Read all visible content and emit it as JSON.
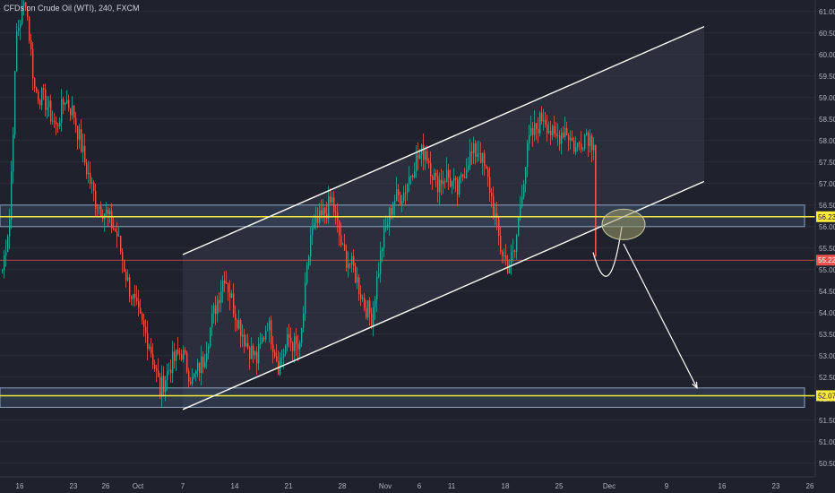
{
  "symbol": "CFDs on Crude Oil (WTI), 240, FXCM",
  "colors": {
    "background": "#1f222d",
    "up": "#26a69a",
    "down": "#ef5350",
    "trendline": "#ffffff",
    "zone_fill": "#3b4f6a",
    "zone_border": "#8fa3bf",
    "level_yellow": "#ffeb3b",
    "level_red": "#ef5350",
    "ellipse_fill": "#9c9c6a",
    "channel_fill": "#363a47"
  },
  "chart_data": {
    "type": "candlestick",
    "ylim": [
      49.8,
      61.1
    ],
    "y_ticks": [
      "61.00",
      "60.50",
      "60.00",
      "59.50",
      "59.00",
      "58.50",
      "58.00",
      "57.50",
      "57.00",
      "56.50",
      "56.00",
      "55.50",
      "55.00",
      "54.50",
      "54.00",
      "53.50",
      "53.00",
      "52.50",
      "52.00",
      "51.50",
      "51.00",
      "50.50",
      "50.00"
    ],
    "x_ticks": [
      "16",
      "23",
      "26",
      "Oct",
      "7",
      "14",
      "21",
      "28",
      "Nov",
      "6",
      "11",
      "18",
      "25",
      "Dec",
      "9",
      "16",
      "23",
      "26"
    ],
    "price_labels": [
      {
        "text": "56.23",
        "value": 56.23,
        "color": "yellow"
      },
      {
        "text": "55.22",
        "value": 55.22,
        "color": "red"
      },
      {
        "text": "52.07",
        "value": 52.07,
        "color": "yellow"
      }
    ],
    "zones": [
      {
        "low": 56.0,
        "high": 56.5
      },
      {
        "low": 51.8,
        "high": 52.25
      }
    ],
    "levels": [
      {
        "value": 56.23,
        "color": "yellow"
      },
      {
        "value": 52.07,
        "color": "yellow"
      },
      {
        "value": 55.22,
        "color": "red"
      }
    ],
    "channel": {
      "upper": [
        {
          "bar": 101,
          "price": 55.35
        },
        {
          "bar": 392,
          "price": 60.65
        }
      ],
      "lower": [
        {
          "bar": 101,
          "price": 51.75
        },
        {
          "bar": 392,
          "price": 57.05
        }
      ]
    },
    "anchors": [
      [
        0,
        55.0
      ],
      [
        4,
        56.2
      ],
      [
        8,
        60.5
      ],
      [
        13,
        61.3
      ],
      [
        18,
        59.2
      ],
      [
        24,
        58.9
      ],
      [
        30,
        58.3
      ],
      [
        35,
        59.0
      ],
      [
        40,
        58.6
      ],
      [
        46,
        57.5
      ],
      [
        52,
        56.6
      ],
      [
        58,
        56.3
      ],
      [
        64,
        55.8
      ],
      [
        70,
        54.7
      ],
      [
        76,
        53.9
      ],
      [
        82,
        53.3
      ],
      [
        88,
        52.2
      ],
      [
        94,
        52.8
      ],
      [
        100,
        53.1
      ],
      [
        106,
        52.4
      ],
      [
        112,
        52.9
      ],
      [
        118,
        54.0
      ],
      [
        124,
        54.9
      ],
      [
        130,
        54.0
      ],
      [
        136,
        53.3
      ],
      [
        142,
        52.9
      ],
      [
        148,
        53.8
      ],
      [
        154,
        52.8
      ],
      [
        160,
        53.4
      ],
      [
        166,
        53.1
      ],
      [
        172,
        55.8
      ],
      [
        178,
        56.2
      ],
      [
        184,
        56.6
      ],
      [
        190,
        55.4
      ],
      [
        196,
        55.0
      ],
      [
        202,
        54.2
      ],
      [
        206,
        53.9
      ],
      [
        212,
        55.6
      ],
      [
        218,
        56.6
      ],
      [
        224,
        56.8
      ],
      [
        230,
        57.5
      ],
      [
        236,
        57.8
      ],
      [
        242,
        57.0
      ],
      [
        248,
        57.2
      ],
      [
        254,
        56.8
      ],
      [
        260,
        57.6
      ],
      [
        266,
        57.8
      ],
      [
        272,
        56.9
      ],
      [
        278,
        55.5
      ],
      [
        282,
        55.1
      ],
      [
        286,
        55.4
      ],
      [
        290,
        56.9
      ],
      [
        294,
        58.0
      ],
      [
        298,
        58.3
      ],
      [
        302,
        58.6
      ],
      [
        308,
        58.0
      ],
      [
        314,
        58.3
      ],
      [
        320,
        57.8
      ],
      [
        326,
        58.2
      ],
      [
        330,
        57.9
      ]
    ],
    "breakout_bar": 331,
    "projection_path": [
      {
        "bar": 330,
        "price": 55.4
      },
      {
        "bar": 337,
        "price": 55.0
      },
      {
        "bar": 342,
        "price": 55.3
      },
      {
        "bar": 346,
        "price": 56.0
      }
    ],
    "projection_arrow": [
      {
        "bar": 347,
        "price": 55.6
      },
      {
        "bar": 388,
        "price": 52.25
      }
    ],
    "ellipse": {
      "bar": 347,
      "price": 56.05
    }
  }
}
